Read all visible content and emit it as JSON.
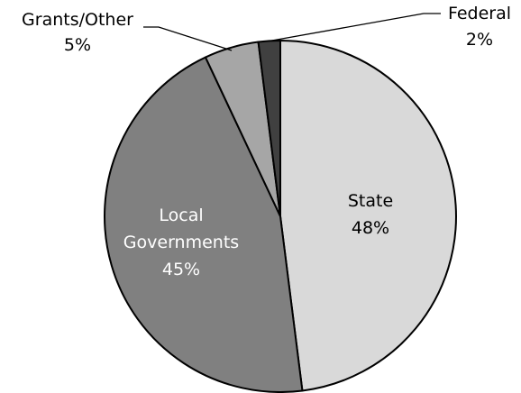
{
  "chart_data": {
    "type": "pie",
    "title": "",
    "slices": [
      {
        "name": "State",
        "value": 48,
        "label": "48%",
        "color": "#d9d9d9"
      },
      {
        "name": "Local Governments",
        "value": 45,
        "label": "45%",
        "color": "#808080"
      },
      {
        "name": "Grants/Other",
        "value": 5,
        "label": "5%",
        "color": "#a6a6a6"
      },
      {
        "name": "Federal",
        "value": 2,
        "label": "2%",
        "color": "#404040"
      }
    ],
    "start_angle_deg": 0,
    "direction": "clockwise",
    "outline_color": "#000000",
    "legend": "none"
  },
  "labels": {
    "state_name": "State",
    "state_pct": "48%",
    "local_line1": "Local",
    "local_line2": "Governments",
    "local_pct": "45%",
    "grants_name": "Grants/Other",
    "grants_pct": "5%",
    "federal_name": "Federal",
    "federal_pct": "2%"
  }
}
